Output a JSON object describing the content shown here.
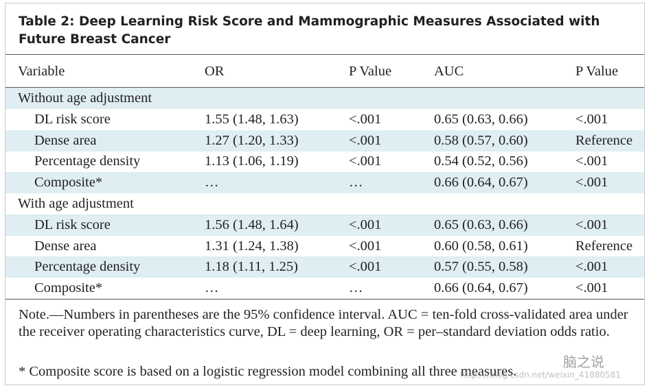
{
  "title": "Table 2: Deep Learning Risk Score and Mammographic Measures Associated with Future Breast Cancer",
  "table": {
    "header": [
      "Variable",
      "OR",
      "P Value",
      "AUC",
      "P Value"
    ],
    "sections": [
      {
        "label": "Without age adjustment",
        "rows": [
          [
            "DL risk score",
            "1.55 (1.48, 1.63)",
            "<.001",
            "0.65 (0.63, 0.66)",
            "<.001"
          ],
          [
            "Dense area",
            "1.27 (1.20, 1.33)",
            "<.001",
            "0.58 (0.57, 0.60)",
            "Reference"
          ],
          [
            "Percentage density",
            "1.13 (1.06, 1.19)",
            "<.001",
            "0.54 (0.52, 0.56)",
            "<.001"
          ],
          [
            "Composite*",
            "…",
            "…",
            "0.66 (0.64, 0.67)",
            "<.001"
          ]
        ]
      },
      {
        "label": "With age adjustment",
        "rows": [
          [
            "DL risk score",
            "1.56 (1.48, 1.64)",
            "<.001",
            "0.65 (0.63, 0.66)",
            "<.001"
          ],
          [
            "Dense area",
            "1.31 (1.24, 1.38)",
            "<.001",
            "0.60 (0.58, 0.61)",
            "Reference"
          ],
          [
            "Percentage density",
            "1.18 (1.11, 1.25)",
            "<.001",
            "0.57 (0.55, 0.58)",
            "<.001"
          ],
          [
            "Composite*",
            "…",
            "…",
            "0.66 (0.64, 0.67)",
            "<.001"
          ]
        ]
      }
    ]
  },
  "notes": [
    "Note.—Numbers in parentheses are the 95% confidence interval. AUC = ten-fold cross-validated area under the receiver operating characteristics curve, DL = deep learning, OR = per–standard deviation odds ratio.",
    "* Composite score is based on a logistic regression model combining all three measures."
  ],
  "watermark": {
    "brand": "脑之说",
    "url": "https://blog.csdn.net/weixin_41880581"
  }
}
